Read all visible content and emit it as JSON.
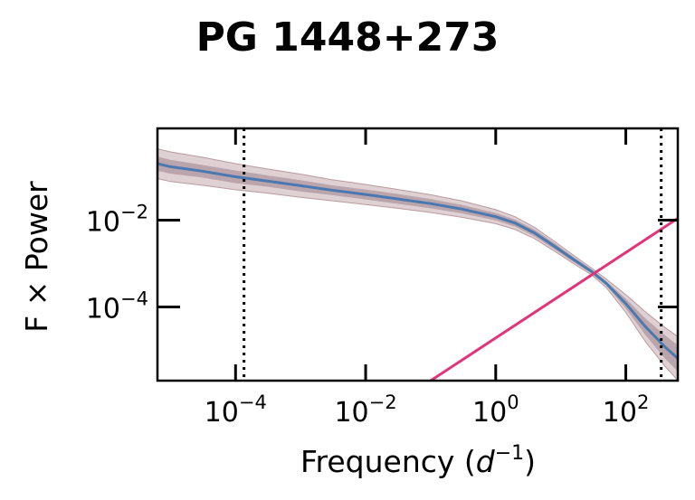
{
  "chart_data": {
    "type": "line",
    "title": "PG 1448+273",
    "xlabel": "Frequency (",
    "xlabel_unit": "d",
    "xlabel_exp": "−1",
    "xlabel_close": ")",
    "ylabel": "F × Power",
    "xscale": "log",
    "yscale": "log",
    "xlim": [
      6.3e-06,
      630
    ],
    "ylim": [
      2e-06,
      1.3
    ],
    "x_ticks": [
      {
        "value": 0.0001,
        "base": "10",
        "exp": "−4"
      },
      {
        "value": 0.01,
        "base": "10",
        "exp": "−2"
      },
      {
        "value": 1,
        "base": "10",
        "exp": "0"
      },
      {
        "value": 100,
        "base": "10",
        "exp": "2"
      }
    ],
    "y_ticks": [
      {
        "value": 0.0001,
        "base": "10",
        "exp": "−4"
      },
      {
        "value": 0.01,
        "base": "10",
        "exp": "−2"
      }
    ],
    "vlines": [
      0.000135,
      350
    ],
    "series": [
      {
        "color": "#4a78b0",
        "band_outer_color": "#b89a9e",
        "band_inner_color": "#8c6f7a",
        "x": [
          6.3e-06,
          1e-05,
          3e-05,
          0.0001,
          0.0003,
          0.001,
          0.003,
          0.01,
          0.03,
          0.1,
          0.3,
          1,
          2,
          4,
          8,
          15,
          30,
          50,
          100,
          200,
          400,
          630
        ],
        "y": [
          0.2,
          0.17,
          0.135,
          0.1,
          0.08,
          0.062,
          0.049,
          0.039,
          0.031,
          0.024,
          0.018,
          0.012,
          0.0085,
          0.005,
          0.0025,
          0.0013,
          0.00065,
          0.00035,
          0.00012,
          3.5e-05,
          1.2e-05,
          6.5e-06
        ],
        "band_inner": [
          1.45,
          1.45,
          1.4,
          1.4,
          1.35,
          1.35,
          1.3,
          1.3,
          1.3,
          1.28,
          1.25,
          1.22,
          1.2,
          1.2,
          1.18,
          1.15,
          1.12,
          1.12,
          1.3,
          1.55,
          1.85,
          2.0
        ],
        "band_outer": [
          2.2,
          2.2,
          2.1,
          2.0,
          1.9,
          1.85,
          1.75,
          1.7,
          1.65,
          1.6,
          1.55,
          1.45,
          1.4,
          1.35,
          1.3,
          1.25,
          1.2,
          1.25,
          1.6,
          2.2,
          2.8,
          3.2
        ]
      },
      {
        "color": "#e0357a",
        "x": [
          0.1,
          630
        ],
        "y": [
          2e-06,
          0.011
        ]
      }
    ],
    "grid": false,
    "legend": "none"
  }
}
